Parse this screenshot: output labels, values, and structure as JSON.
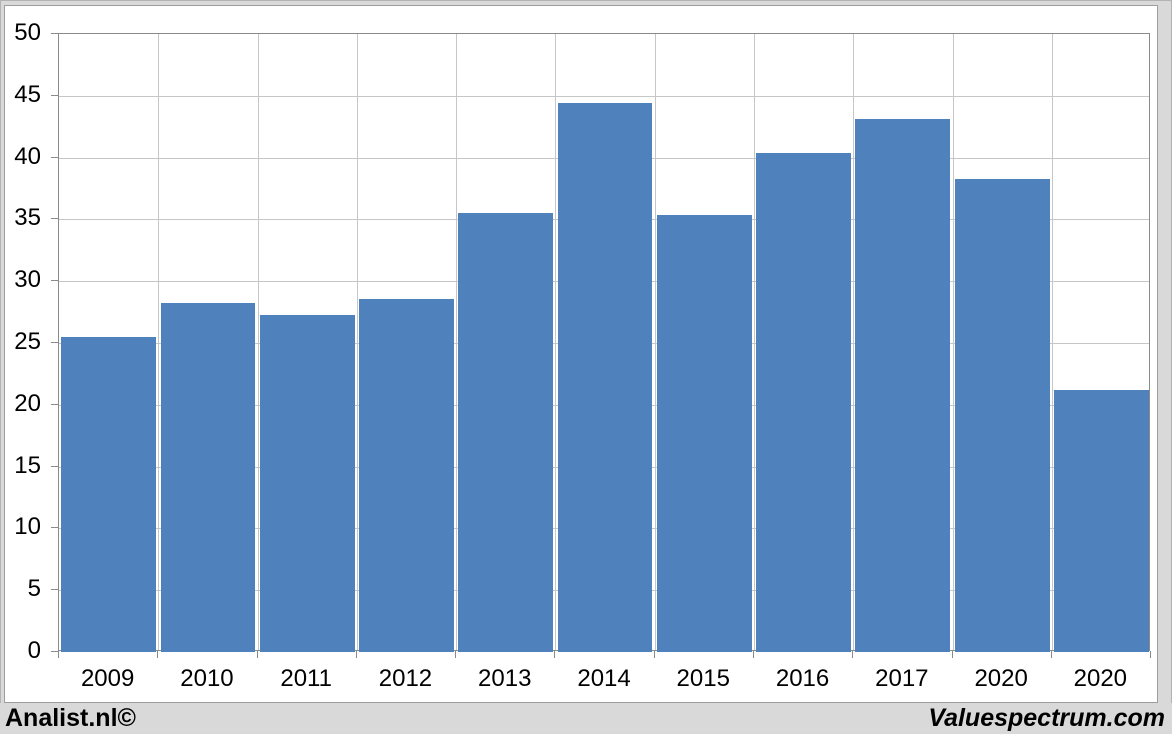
{
  "chart_data": {
    "type": "bar",
    "categories": [
      "2009",
      "2010",
      "2011",
      "2012",
      "2013",
      "2014",
      "2015",
      "2016",
      "2017",
      "2020",
      "2020"
    ],
    "values": [
      25.5,
      28.2,
      27.3,
      28.6,
      35.5,
      44.4,
      35.4,
      40.4,
      43.1,
      38.3,
      21.2
    ],
    "title": "",
    "xlabel": "",
    "ylabel": "",
    "ylim": [
      0,
      50
    ],
    "ytick_step": 5,
    "ytick_labels": [
      "0",
      "5",
      "10",
      "15",
      "20",
      "25",
      "30",
      "35",
      "40",
      "45",
      "50"
    ],
    "grid": true,
    "legend": "none",
    "bar_color": "#4f81bd",
    "gridline_color": "#c6c6c6",
    "axis_color": "#8a8a8a",
    "plot_background": "#ffffff"
  },
  "footer": {
    "left_label": "Analist.nl©",
    "right_label": "Valuespectrum.com"
  }
}
